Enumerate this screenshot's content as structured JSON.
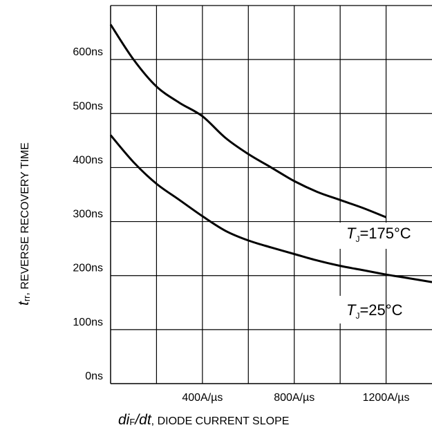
{
  "chart_data": {
    "type": "line",
    "x_tick_labels": [
      "400A/µs",
      "800A/µs",
      "1200A/µs"
    ],
    "y_tick_labels": [
      "0ns",
      "100ns",
      "200ns",
      "300ns",
      "400ns",
      "500ns",
      "600ns"
    ],
    "xlim": [
      0,
      1400
    ],
    "ylim": [
      0,
      700
    ],
    "x_ticks": [
      400,
      800,
      1200
    ],
    "y_ticks": [
      0,
      100,
      200,
      300,
      400,
      500,
      600
    ],
    "grid": true,
    "xlabel": {
      "var": "di",
      "sub": "F",
      "var2": "/dt",
      "rest": ", DIODE CURRENT SLOPE"
    },
    "ylabel": {
      "var": "t",
      "sub": "rr",
      "rest": ", REVERSE RECOVERY TIME"
    },
    "series": [
      {
        "name": "TJ=175°C",
        "label": {
          "T": "T",
          "sub": "J",
          "rest": "=175°C"
        },
        "x": [
          0,
          100,
          200,
          300,
          400,
          500,
          600,
          700,
          800,
          900,
          1000,
          1100,
          1200
        ],
        "y": [
          665,
          600,
          550,
          520,
          495,
          455,
          425,
          400,
          375,
          355,
          340,
          325,
          308
        ]
      },
      {
        "name": "TJ=25°C",
        "label": {
          "T": "T",
          "sub": "J",
          "rest": "=25°C"
        },
        "x": [
          0,
          100,
          200,
          300,
          400,
          500,
          600,
          700,
          800,
          900,
          1000,
          1100,
          1200,
          1300,
          1400
        ],
        "y": [
          460,
          410,
          370,
          340,
          310,
          283,
          265,
          252,
          240,
          228,
          218,
          210,
          202,
          195,
          188
        ]
      }
    ]
  }
}
